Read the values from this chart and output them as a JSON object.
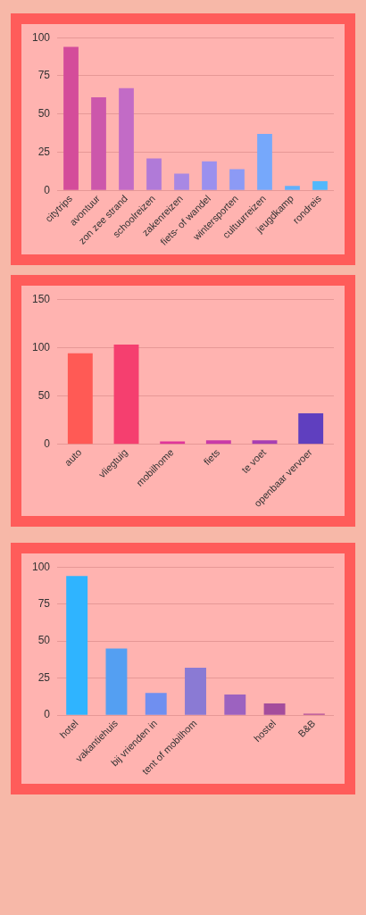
{
  "chart_data": [
    {
      "type": "bar",
      "categories": [
        "citytrips",
        "avontuur",
        "zon zee strand",
        "schoolreizen",
        "zakenreizen",
        "fiets- of wandel",
        "wintersporten",
        "cultuurreizen",
        "jeugdkamp",
        "rondreis"
      ],
      "values": [
        94,
        61,
        67,
        21,
        11,
        19,
        14,
        37,
        3,
        6
      ],
      "colors": [
        "#d44c9a",
        "#cc57ab",
        "#c26bc6",
        "#b07ad8",
        "#a888e4",
        "#9a90ee",
        "#8c9af5",
        "#76a8fb",
        "#60b0fb",
        "#52b8fb"
      ],
      "ylim": [
        0,
        100
      ],
      "yticks": [
        0,
        25,
        50,
        75,
        100
      ],
      "grid": "y"
    },
    {
      "type": "bar",
      "categories": [
        "auto",
        "vliegtuig",
        "mobilhome",
        "fiets",
        "te voet",
        "openbaar vervoer"
      ],
      "values": [
        94,
        103,
        3,
        4,
        4,
        32
      ],
      "colors": [
        "#ff5a55",
        "#f53f6f",
        "#e0359a",
        "#c83aa8",
        "#a63eb3",
        "#5f3fbf"
      ],
      "ylim": [
        0,
        150
      ],
      "yticks": [
        0,
        50,
        100,
        150
      ],
      "grid": "y"
    },
    {
      "type": "bar",
      "categories": [
        "hotel",
        "vakantiehuis",
        "bij vrienden in",
        "tent of mobilhom",
        null,
        "hostel",
        "B&B"
      ],
      "values": [
        94,
        45,
        15,
        32,
        14,
        8,
        1
      ],
      "colors": [
        "#2fb4ff",
        "#549ff2",
        "#6f8ff0",
        "#8a7ad4",
        "#9c62c0",
        "#a44d9c",
        "#b04a98"
      ],
      "ylim": [
        0,
        100
      ],
      "yticks": [
        0,
        25,
        50,
        75,
        100
      ],
      "grid": "y"
    }
  ]
}
